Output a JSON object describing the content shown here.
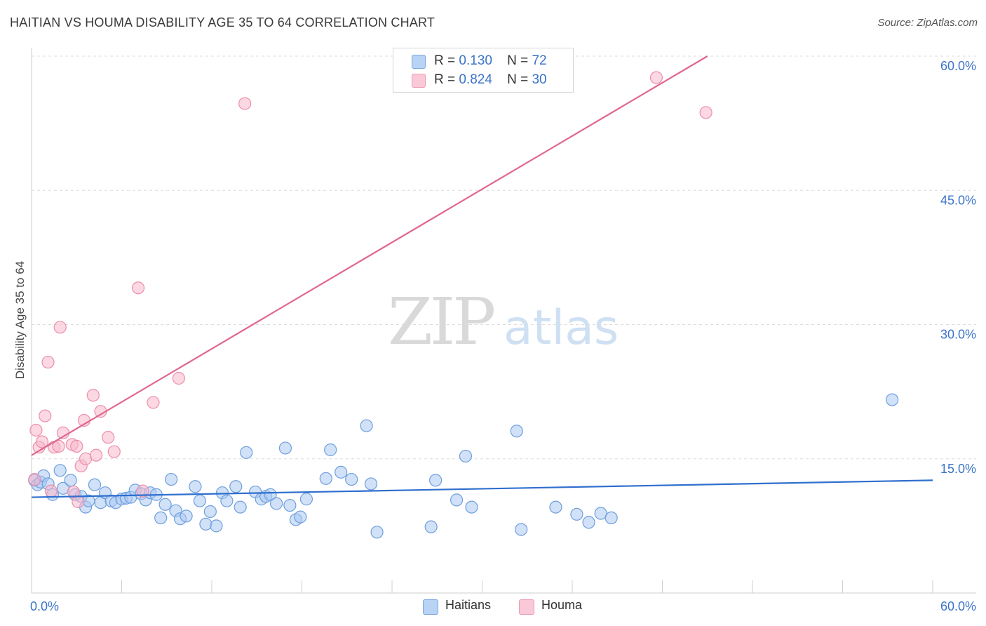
{
  "title": "HAITIAN VS HOUMA DISABILITY AGE 35 TO 64 CORRELATION CHART",
  "source": "Source: ZipAtlas.com",
  "watermark": {
    "zip": "ZIP",
    "atlas": "atlas"
  },
  "legend_top": [
    {
      "r_label": "R =",
      "r_value": "0.130",
      "n_label": "N =",
      "n_value": "72"
    },
    {
      "r_label": "R =",
      "r_value": "0.824",
      "n_label": "N =",
      "n_value": "30"
    }
  ],
  "legend_bottom": [
    {
      "label": "Haitians"
    },
    {
      "label": "Houma"
    }
  ],
  "chart_data": {
    "type": "scatter",
    "title": "HAITIAN VS HOUMA DISABILITY AGE 35 TO 64 CORRELATION CHART",
    "xlabel": "",
    "ylabel": "Disability Age 35 to 64",
    "xlim": [
      0,
      60
    ],
    "ylim": [
      0,
      60
    ],
    "x_tick_labels": [
      "0.0%",
      "60.0%"
    ],
    "y_ticks": [
      15,
      30,
      45,
      60
    ],
    "y_tick_labels": [
      "15.0%",
      "30.0%",
      "45.0%",
      "60.0%"
    ],
    "grid": true,
    "colors": {
      "haitians_fill": "#a9c8f2",
      "haitians_stroke": "#6f9fdc",
      "haitians_line": "#2f6fce",
      "houma_fill": "#f7b8cb",
      "houma_stroke": "#ec8fad",
      "houma_line": "#e0678e",
      "axis_text": "#3b73c9",
      "grid": "#dcdcdc"
    },
    "series": [
      {
        "name": "Haitians",
        "R": 0.13,
        "N": 72,
        "trend": {
          "x": [
            0,
            60
          ],
          "y": [
            10.7,
            12.6
          ]
        },
        "points": [
          [
            0.2,
            12.6
          ],
          [
            0.4,
            12.1
          ],
          [
            0.6,
            12.4
          ],
          [
            0.8,
            13.1
          ],
          [
            1.1,
            12.2
          ],
          [
            1.4,
            11.0
          ],
          [
            1.9,
            13.7
          ],
          [
            2.1,
            11.7
          ],
          [
            2.6,
            12.6
          ],
          [
            2.9,
            11.0
          ],
          [
            3.3,
            10.8
          ],
          [
            3.6,
            9.6
          ],
          [
            3.8,
            10.3
          ],
          [
            4.2,
            12.1
          ],
          [
            4.6,
            10.1
          ],
          [
            4.9,
            11.2
          ],
          [
            5.3,
            10.3
          ],
          [
            5.6,
            10.1
          ],
          [
            6.0,
            10.5
          ],
          [
            6.3,
            10.6
          ],
          [
            6.6,
            10.7
          ],
          [
            6.9,
            11.5
          ],
          [
            7.3,
            11.1
          ],
          [
            7.6,
            10.4
          ],
          [
            7.9,
            11.2
          ],
          [
            8.3,
            11.0
          ],
          [
            8.6,
            8.4
          ],
          [
            8.9,
            9.9
          ],
          [
            9.3,
            12.7
          ],
          [
            9.6,
            9.2
          ],
          [
            9.9,
            8.3
          ],
          [
            10.3,
            8.6
          ],
          [
            10.9,
            11.9
          ],
          [
            11.2,
            10.3
          ],
          [
            11.6,
            7.7
          ],
          [
            11.9,
            9.1
          ],
          [
            12.3,
            7.5
          ],
          [
            12.7,
            11.2
          ],
          [
            13.0,
            10.3
          ],
          [
            13.6,
            11.9
          ],
          [
            13.9,
            9.6
          ],
          [
            14.3,
            15.7
          ],
          [
            14.9,
            11.3
          ],
          [
            15.3,
            10.5
          ],
          [
            15.6,
            10.8
          ],
          [
            15.9,
            11.0
          ],
          [
            16.3,
            10.0
          ],
          [
            16.9,
            16.2
          ],
          [
            17.2,
            9.8
          ],
          [
            17.6,
            8.2
          ],
          [
            17.9,
            8.5
          ],
          [
            18.3,
            10.5
          ],
          [
            19.6,
            12.8
          ],
          [
            19.9,
            16.0
          ],
          [
            20.6,
            13.5
          ],
          [
            21.3,
            12.7
          ],
          [
            22.3,
            18.7
          ],
          [
            22.6,
            12.2
          ],
          [
            23.0,
            6.8
          ],
          [
            26.6,
            7.4
          ],
          [
            26.9,
            12.6
          ],
          [
            28.3,
            10.4
          ],
          [
            28.9,
            15.3
          ],
          [
            29.3,
            9.6
          ],
          [
            32.3,
            18.1
          ],
          [
            32.6,
            7.1
          ],
          [
            34.9,
            9.6
          ],
          [
            36.3,
            8.8
          ],
          [
            37.1,
            7.9
          ],
          [
            37.9,
            8.9
          ],
          [
            38.6,
            8.4
          ],
          [
            57.3,
            21.6
          ]
        ]
      },
      {
        "name": "Houma",
        "R": 0.824,
        "N": 30,
        "trend": {
          "x": [
            0,
            45
          ],
          "y": [
            15.4,
            60.0
          ]
        },
        "points": [
          [
            0.3,
            18.2
          ],
          [
            0.5,
            16.3
          ],
          [
            0.7,
            16.9
          ],
          [
            0.9,
            19.8
          ],
          [
            1.1,
            25.8
          ],
          [
            1.3,
            11.4
          ],
          [
            1.5,
            16.3
          ],
          [
            1.8,
            16.4
          ],
          [
            1.9,
            29.7
          ],
          [
            2.1,
            17.9
          ],
          [
            2.7,
            16.6
          ],
          [
            2.8,
            11.3
          ],
          [
            3.0,
            16.4
          ],
          [
            3.1,
            10.2
          ],
          [
            3.3,
            14.2
          ],
          [
            3.5,
            19.3
          ],
          [
            3.6,
            15.0
          ],
          [
            4.1,
            22.1
          ],
          [
            4.3,
            15.4
          ],
          [
            4.6,
            20.3
          ],
          [
            5.1,
            17.4
          ],
          [
            5.5,
            15.8
          ],
          [
            7.1,
            34.1
          ],
          [
            7.4,
            11.4
          ],
          [
            8.1,
            21.3
          ],
          [
            9.8,
            24.0
          ],
          [
            14.2,
            54.7
          ],
          [
            41.6,
            57.6
          ],
          [
            44.9,
            53.7
          ],
          [
            0.2,
            12.7
          ]
        ]
      }
    ]
  }
}
